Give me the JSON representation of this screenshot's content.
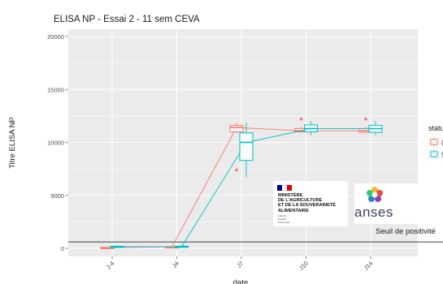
{
  "chart_data": {
    "type": "boxplot",
    "title": "ELISA NP - Essai 2 - 11 sem CEVA",
    "xlabel": "date",
    "ylabel": "Titre ELISA NP",
    "ylim": [
      -1000,
      20500
    ],
    "yticks": [
      0,
      5000,
      10000,
      15000,
      20000
    ],
    "categories": [
      "J-4",
      "J4",
      "J7",
      "J10",
      "J14"
    ],
    "grid": true,
    "legend_title": "statu",
    "legend_position": "right",
    "reference_line": {
      "value": 600,
      "label": "Seuil de positivité"
    },
    "series": [
      {
        "color": "#f8766d",
        "legend_text": "(",
        "boxes": [
          {
            "x": "J-4",
            "min": 50,
            "q1": 60,
            "median": 70,
            "q3": 80,
            "max": 100,
            "outliers": []
          },
          {
            "x": "J4",
            "min": 100,
            "q1": 120,
            "median": 130,
            "q3": 140,
            "max": 160,
            "outliers": []
          },
          {
            "x": "J7",
            "min": 10900,
            "q1": 11000,
            "median": 11400,
            "q3": 11600,
            "max": 11900,
            "outliers": [
              7400
            ]
          },
          {
            "x": "J10",
            "min": 10900,
            "q1": 11000,
            "median": 11100,
            "q3": 11300,
            "max": 11450,
            "outliers": [
              12200
            ]
          },
          {
            "x": "J14",
            "min": 10850,
            "q1": 10950,
            "median": 11100,
            "q3": 11300,
            "max": 11450,
            "outliers": [
              12200
            ]
          }
        ]
      },
      {
        "color": "#00bfc4",
        "legend_text": "§",
        "boxes": [
          {
            "x": "J-4",
            "min": 60,
            "q1": 100,
            "median": 150,
            "q3": 190,
            "max": 250,
            "outliers": []
          },
          {
            "x": "J4",
            "min": 60,
            "q1": 100,
            "median": 150,
            "q3": 200,
            "max": 260,
            "outliers": []
          },
          {
            "x": "J7",
            "min": 6700,
            "q1": 8300,
            "median": 10000,
            "q3": 10900,
            "max": 11900,
            "outliers": []
          },
          {
            "x": "J10",
            "min": 10700,
            "q1": 11000,
            "median": 11300,
            "q3": 11650,
            "max": 12000,
            "outliers": []
          },
          {
            "x": "J14",
            "min": 10700,
            "q1": 10950,
            "median": 11300,
            "q3": 11600,
            "max": 12000,
            "outliers": []
          }
        ]
      }
    ]
  },
  "logos": {
    "ministry_text": "MINISTÈRE\nDE L'AGRICULTURE\nET DE LA SOUVERAINETÉ\nALIMENTAIRE",
    "ministry_motto": "Liberté\nÉgalité\nFraternité",
    "anses_text": "anses"
  },
  "colors": {
    "panel_bg": "#ebebeb",
    "grid": "#ffffff",
    "axis_text": "#4d4d4d",
    "ref_line": "#555555"
  }
}
